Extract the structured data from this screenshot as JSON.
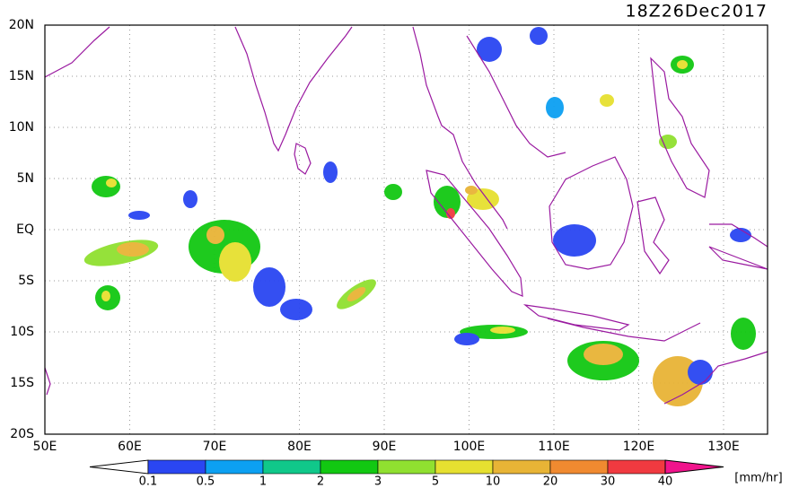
{
  "header": {
    "title": "18Z26Dec2017"
  },
  "map": {
    "lon_labels": [
      "50E",
      "60E",
      "70E",
      "80E",
      "90E",
      "100E",
      "110E",
      "120E",
      "130E"
    ],
    "lat_labels": [
      "20N",
      "15N",
      "10N",
      "5N",
      "EQ",
      "5S",
      "10S",
      "15S",
      "20S"
    ]
  },
  "colorbar": {
    "labels": [
      "0.1",
      "0.5",
      "1",
      "2",
      "3",
      "5",
      "10",
      "20",
      "30",
      "40"
    ],
    "colors": [
      "#ffffff",
      "#2a46f2",
      "#0ca0f2",
      "#10c88a",
      "#12c812",
      "#90e030",
      "#e6e030",
      "#e8b436",
      "#f08a30",
      "#f03a40",
      "#f0148c"
    ],
    "unit": "[mm/hr]"
  }
}
